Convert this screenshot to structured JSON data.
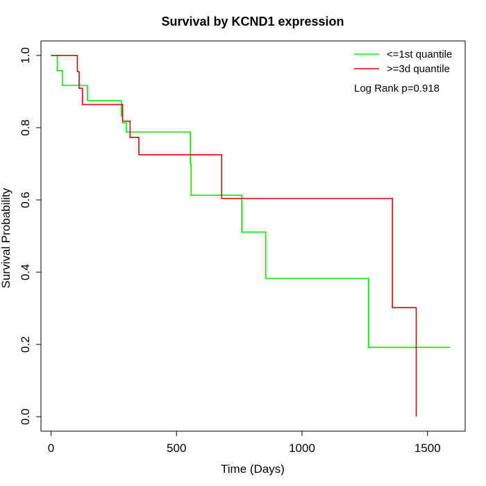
{
  "chart_data": {
    "type": "line",
    "step": true,
    "title": "Survival by KCND1 expression",
    "xlabel": "Time (Days)",
    "ylabel": "Survival Probability",
    "xlim": [
      -40,
      1650
    ],
    "ylim": [
      -0.04,
      1.04
    ],
    "xticks": [
      0,
      500,
      1000,
      1500
    ],
    "yticks": [
      0.0,
      0.2,
      0.4,
      0.6,
      0.8,
      1.0
    ],
    "xtick_labels": [
      "0",
      "500",
      "1000",
      "1500"
    ],
    "ytick_labels": [
      "0.0",
      "0.2",
      "0.4",
      "0.6",
      "0.8",
      "1.0"
    ],
    "grid": false,
    "legend_position": "top-right",
    "annotation": "Log Rank p=0.918",
    "series": [
      {
        "name": "<=1st quantile",
        "color": "#00ee00",
        "x": [
          0,
          25,
          45,
          145,
          280,
          285,
          300,
          555,
          558,
          760,
          855,
          1265,
          1590
        ],
        "y": [
          1.0,
          0.958,
          0.917,
          0.875,
          0.833,
          0.813,
          0.788,
          0.7,
          0.613,
          0.511,
          0.383,
          0.192,
          0.192
        ]
      },
      {
        "name": ">=3d quantile",
        "color": "#dd0000",
        "x": [
          0,
          105,
          112,
          125,
          280,
          285,
          315,
          350,
          680,
          1360,
          1455,
          1455
        ],
        "y": [
          1.0,
          0.955,
          0.909,
          0.864,
          0.864,
          0.818,
          0.773,
          0.725,
          0.604,
          0.302,
          0.302,
          0.0
        ]
      }
    ]
  }
}
